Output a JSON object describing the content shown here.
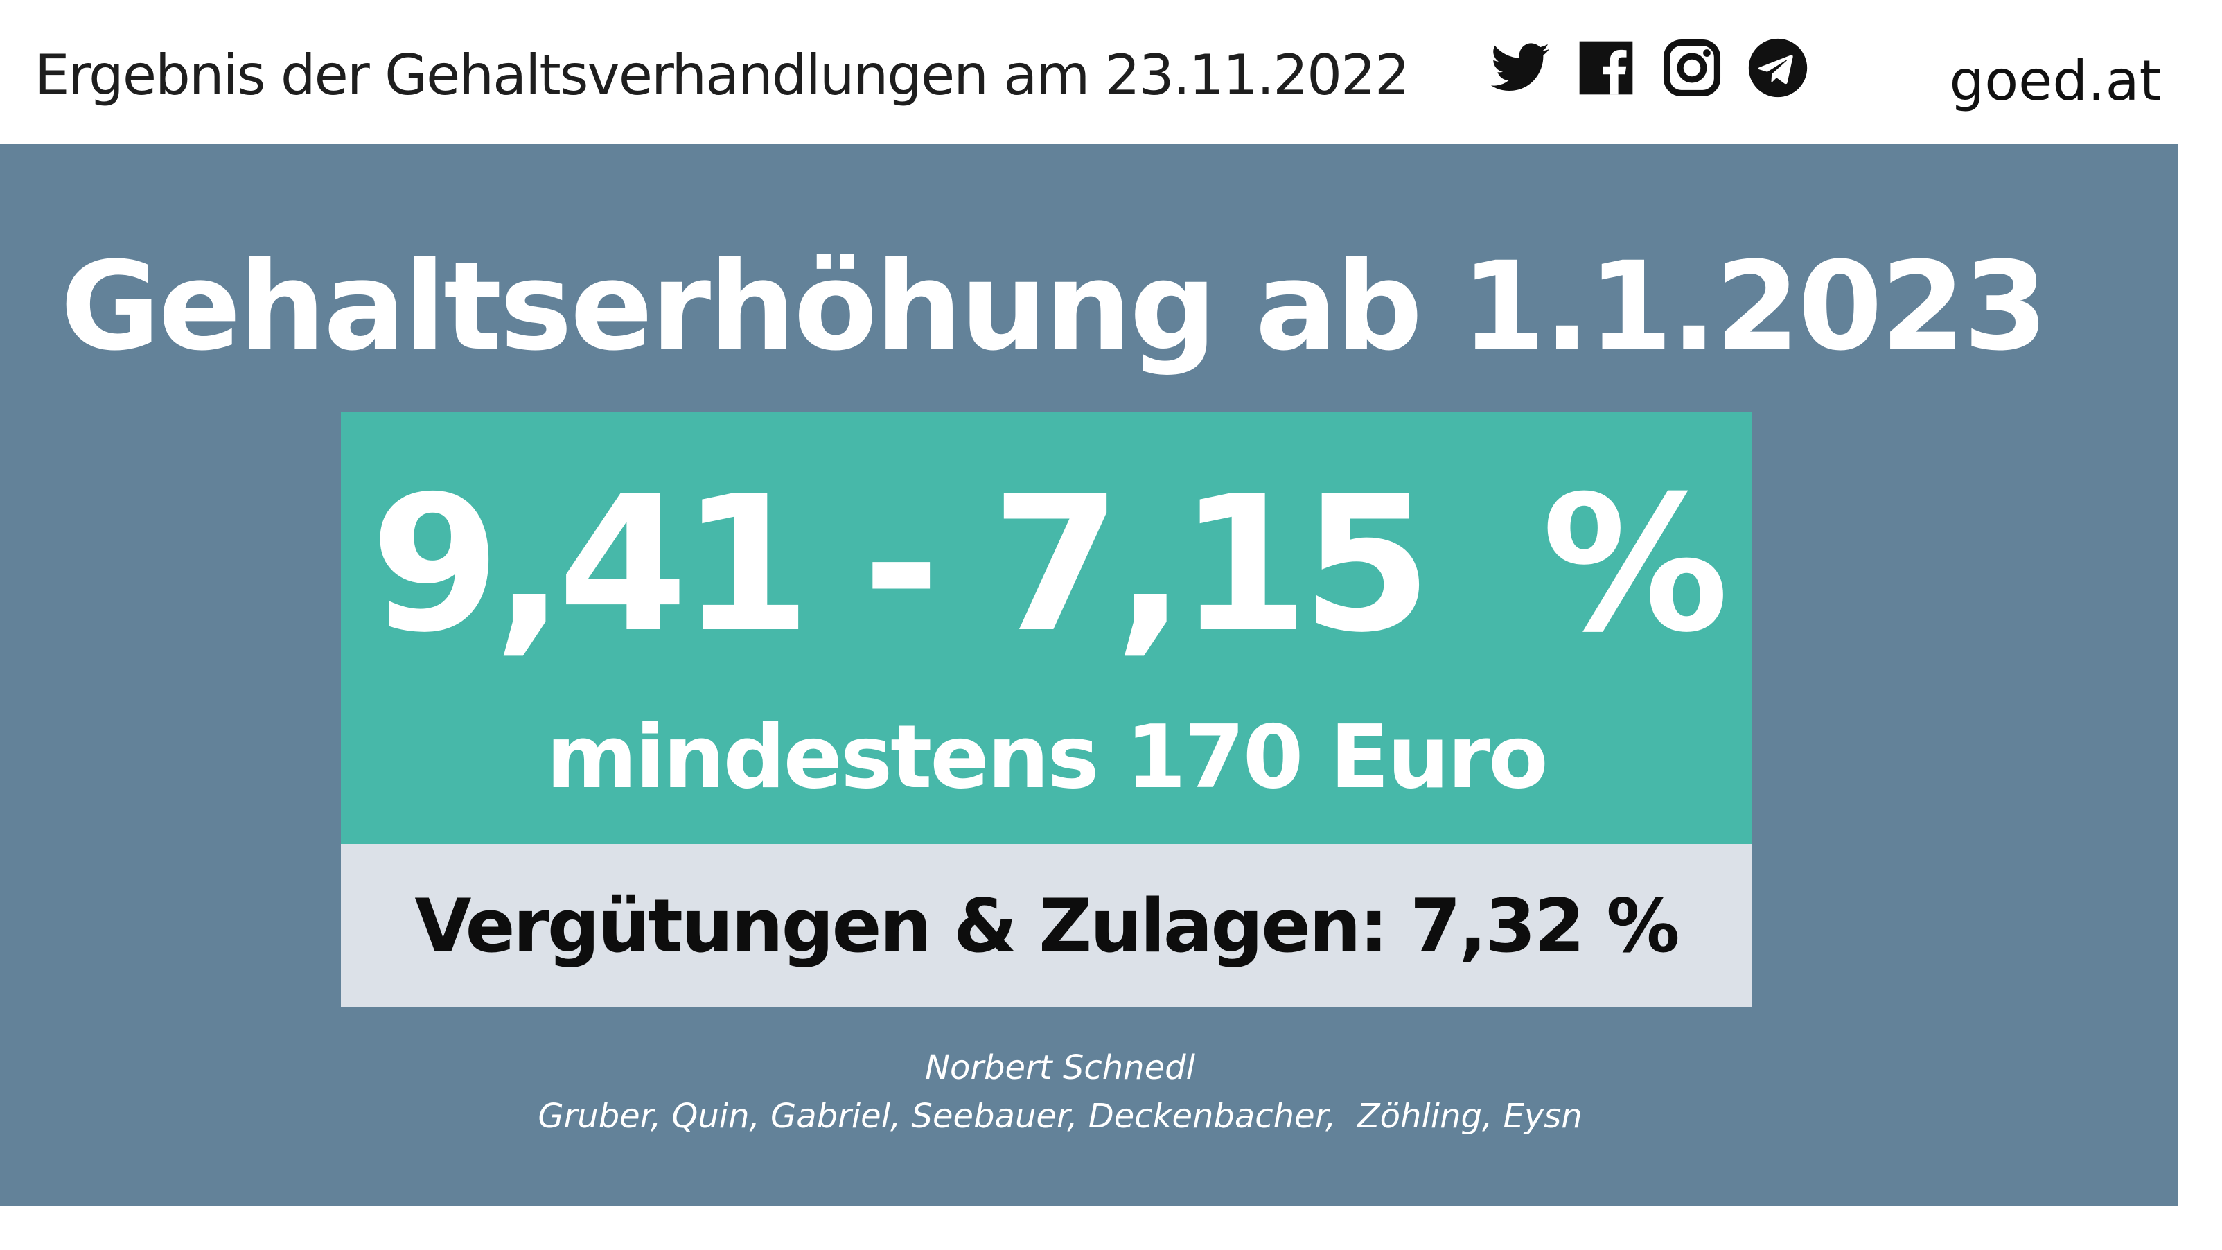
{
  "header": {
    "title": "Ergebnis der Gehaltsverhandlungen am 23.11.2022",
    "brand": "goed.at",
    "social_icons": [
      "twitter-icon",
      "facebook-icon",
      "instagram-icon",
      "telegram-icon"
    ]
  },
  "main": {
    "title": "Gehaltserhöhung ab 1.1.2023",
    "raise_range": "9,41 - 7,15  %",
    "minimum": "mindestens 170 Euro",
    "allowances": "Vergütungen & Zulagen: 7,32 %",
    "negotiator": "Norbert Schnedl",
    "team": "Gruber, Quin, Gabriel, Seebauer, Deckenbacher,  Zöhling, Eysn"
  },
  "colors": {
    "panel": "#638299",
    "teal": "#47b8a9",
    "grey": "#dce1e8",
    "text_dark": "#1e1e1e",
    "text_light": "#ffffff"
  }
}
